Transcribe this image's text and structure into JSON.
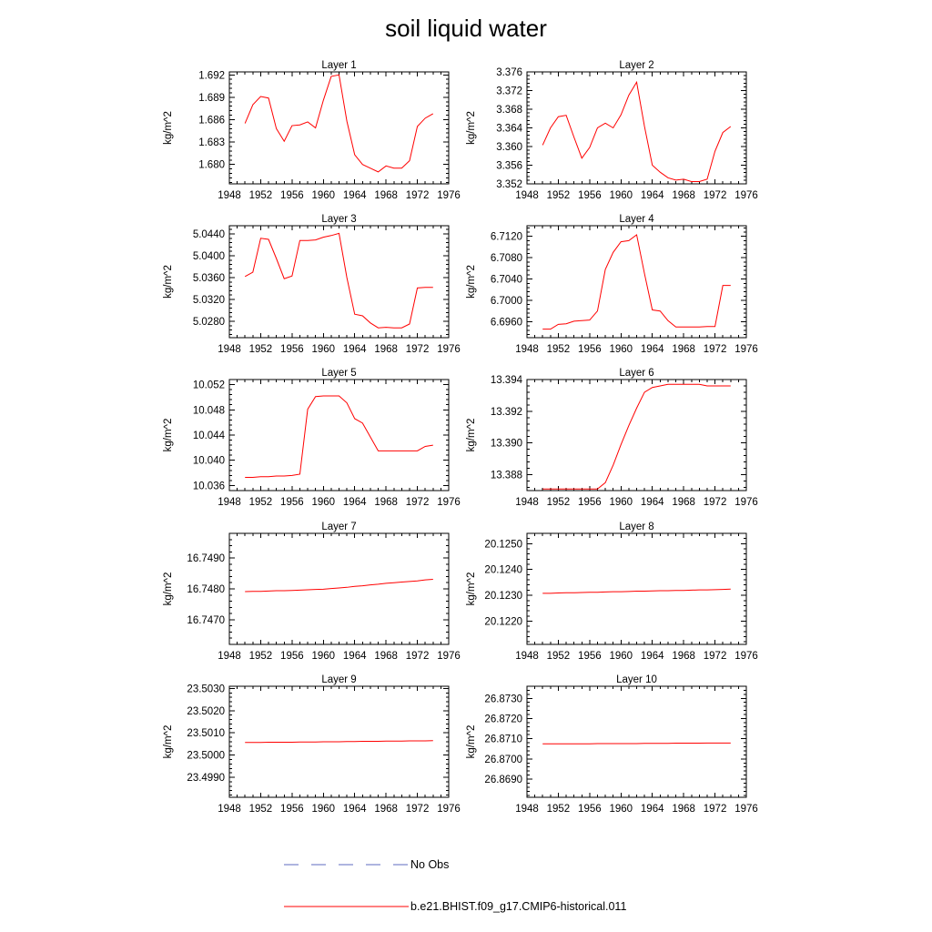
{
  "chart_data": {
    "type": "line",
    "title": "soil liquid water",
    "grid": false,
    "legend": {
      "placement": "bottom-center",
      "entries": [
        {
          "label": "No Obs",
          "color": "#5c6bc0",
          "style": "dashed"
        },
        {
          "label": "b.e21.BHIST.f09_g17.CMIP6-historical.011",
          "color": "#ff0000",
          "style": "solid"
        }
      ]
    },
    "x_axis": {
      "range": [
        1948,
        1976
      ],
      "ticks": [
        1948,
        1952,
        1956,
        1960,
        1964,
        1968,
        1972,
        1976
      ],
      "tick_labels": [
        "1948",
        "1952",
        "1956",
        "1960",
        "1964",
        "1968",
        "1972",
        "1976"
      ]
    },
    "x": [
      1950,
      1951,
      1952,
      1953,
      1954,
      1955,
      1956,
      1957,
      1958,
      1959,
      1960,
      1961,
      1962,
      1963,
      1964,
      1965,
      1966,
      1967,
      1968,
      1969,
      1970,
      1971,
      1972,
      1973,
      1974
    ],
    "series_color": "#ff0000",
    "panels": [
      {
        "title": "Layer 1",
        "ylabel": "kg/m^2",
        "ylim": [
          1.6774,
          1.6924
        ],
        "yticks": [
          1.68,
          1.683,
          1.686,
          1.689,
          1.692
        ],
        "ytick_labels": [
          "1.680",
          "1.683",
          "1.686",
          "1.689",
          "1.692"
        ],
        "values": [
          1.6855,
          1.688,
          1.6891,
          1.6889,
          1.6848,
          1.6831,
          1.6852,
          1.6853,
          1.6857,
          1.6849,
          1.6886,
          1.6918,
          1.692,
          1.6858,
          1.6813,
          1.68,
          1.6795,
          1.679,
          1.6798,
          1.6795,
          1.6795,
          1.6805,
          1.6851,
          1.6862,
          1.6868
        ]
      },
      {
        "title": "Layer 2",
        "ylabel": "kg/m^2",
        "ylim": [
          3.352,
          3.376
        ],
        "yticks": [
          3.352,
          3.356,
          3.36,
          3.364,
          3.368,
          3.372,
          3.376
        ],
        "ytick_labels": [
          "3.352",
          "3.356",
          "3.360",
          "3.364",
          "3.368",
          "3.372",
          "3.376"
        ],
        "values": [
          3.3603,
          3.364,
          3.3664,
          3.3667,
          3.362,
          3.3575,
          3.3598,
          3.364,
          3.365,
          3.364,
          3.3668,
          3.371,
          3.3738,
          3.3643,
          3.356,
          3.3545,
          3.3533,
          3.3528,
          3.353,
          3.3525,
          3.3525,
          3.353,
          3.359,
          3.363,
          3.3643
        ]
      },
      {
        "title": "Layer 3",
        "ylabel": "kg/m^2",
        "ylim": [
          5.025,
          5.0455
        ],
        "yticks": [
          5.028,
          5.032,
          5.036,
          5.04,
          5.044
        ],
        "ytick_labels": [
          "5.0280",
          "5.0320",
          "5.0360",
          "5.0400",
          "5.0440"
        ],
        "values": [
          5.0362,
          5.037,
          5.0432,
          5.043,
          5.0395,
          5.0358,
          5.0363,
          5.0428,
          5.0428,
          5.0429,
          5.0434,
          5.0437,
          5.0441,
          5.036,
          5.0293,
          5.029,
          5.0277,
          5.0268,
          5.0269,
          5.0268,
          5.0268,
          5.0275,
          5.0341,
          5.0342,
          5.0342
        ]
      },
      {
        "title": "Layer 4",
        "ylabel": "kg/m^2",
        "ylim": [
          6.693,
          6.714
        ],
        "yticks": [
          6.696,
          6.7,
          6.704,
          6.708,
          6.712
        ],
        "ytick_labels": [
          "6.6960",
          "6.7000",
          "6.7040",
          "6.7080",
          "6.7120"
        ],
        "values": [
          6.6946,
          6.6946,
          6.6955,
          6.6956,
          6.6961,
          6.6962,
          6.6963,
          6.698,
          6.7058,
          6.709,
          6.711,
          6.7112,
          6.7123,
          6.705,
          6.6982,
          6.698,
          6.6962,
          6.695,
          6.695,
          6.695,
          6.695,
          6.6951,
          6.6951,
          6.7028,
          6.7028
        ]
      },
      {
        "title": "Layer 5",
        "ylabel": "kg/m^2",
        "ylim": [
          10.0352,
          10.0528
        ],
        "yticks": [
          10.036,
          10.04,
          10.044,
          10.048,
          10.052
        ],
        "ytick_labels": [
          "10.036",
          "10.040",
          "10.044",
          "10.048",
          "10.052"
        ],
        "values": [
          10.0373,
          10.0373,
          10.0374,
          10.0374,
          10.0375,
          10.0375,
          10.0376,
          10.0378,
          10.0481,
          10.0501,
          10.0502,
          10.0502,
          10.0502,
          10.0491,
          10.0466,
          10.0459,
          10.0437,
          10.0415,
          10.0415,
          10.0415,
          10.0415,
          10.0415,
          10.0415,
          10.0422,
          10.0424
        ]
      },
      {
        "title": "Layer 6",
        "ylabel": "kg/m^2",
        "ylim": [
          13.387,
          13.394
        ],
        "yticks": [
          13.388,
          13.39,
          13.392,
          13.394
        ],
        "ytick_labels": [
          "13.388",
          "13.390",
          "13.392",
          "13.394"
        ],
        "values": [
          13.3871,
          13.3871,
          13.3871,
          13.3871,
          13.3871,
          13.3871,
          13.3871,
          13.3871,
          13.3875,
          13.3886,
          13.3899,
          13.3911,
          13.3922,
          13.3932,
          13.3935,
          13.3936,
          13.3937,
          13.3937,
          13.3937,
          13.3937,
          13.3937,
          13.3936,
          13.3936,
          13.3936,
          13.3936
        ]
      },
      {
        "title": "Layer 7",
        "ylabel": "kg/m^2",
        "ylim": [
          16.7462,
          16.7498
        ],
        "yticks": [
          16.747,
          16.748,
          16.749
        ],
        "ytick_labels": [
          "16.7470",
          "16.7480",
          "16.7490"
        ],
        "values": [
          16.74791,
          16.74792,
          16.74792,
          16.74793,
          16.74794,
          16.74794,
          16.74795,
          16.74796,
          16.74797,
          16.74798,
          16.74799,
          16.74801,
          16.74803,
          16.74805,
          16.74808,
          16.7481,
          16.74813,
          16.74815,
          16.74818,
          16.7482,
          16.74822,
          16.74824,
          16.74826,
          16.74829,
          16.74831
        ]
      },
      {
        "title": "Layer 8",
        "ylabel": "kg/m^2",
        "ylim": [
          20.1211,
          20.1254
        ],
        "yticks": [
          20.122,
          20.123,
          20.124,
          20.125
        ],
        "ytick_labels": [
          "20.1220",
          "20.1230",
          "20.1240",
          "20.1250"
        ],
        "values": [
          20.12308,
          20.12308,
          20.12309,
          20.1231,
          20.1231,
          20.12311,
          20.12312,
          20.12312,
          20.12313,
          20.12314,
          20.12314,
          20.12315,
          20.12316,
          20.12316,
          20.12317,
          20.12318,
          20.12318,
          20.12319,
          20.12319,
          20.1232,
          20.12321,
          20.12321,
          20.12322,
          20.12323,
          20.12324
        ]
      },
      {
        "title": "Layer 9",
        "ylabel": "kg/m^2",
        "ylim": [
          23.4981,
          23.5031
        ],
        "yticks": [
          23.499,
          23.5,
          23.501,
          23.502,
          23.503
        ],
        "ytick_labels": [
          "23.4990",
          "23.5000",
          "23.5010",
          "23.5020",
          "23.5030"
        ],
        "values": [
          23.50057,
          23.50057,
          23.50057,
          23.50058,
          23.50058,
          23.50058,
          23.50058,
          23.50059,
          23.50059,
          23.50059,
          23.5006,
          23.5006,
          23.5006,
          23.50061,
          23.50061,
          23.50062,
          23.50062,
          23.50062,
          23.50063,
          23.50063,
          23.50063,
          23.50064,
          23.50064,
          23.50064,
          23.50065
        ]
      },
      {
        "title": "Layer 10",
        "ylabel": "kg/m^2",
        "ylim": [
          26.8681,
          26.8736
        ],
        "yticks": [
          26.869,
          26.87,
          26.871,
          26.872,
          26.873
        ],
        "ytick_labels": [
          "26.8690",
          "26.8700",
          "26.8710",
          "26.8720",
          "26.8730"
        ],
        "values": [
          26.87075,
          26.87075,
          26.87075,
          26.87075,
          26.87075,
          26.87075,
          26.87075,
          26.87076,
          26.87076,
          26.87076,
          26.87076,
          26.87076,
          26.87076,
          26.87077,
          26.87077,
          26.87077,
          26.87077,
          26.87078,
          26.87078,
          26.87078,
          26.87078,
          26.87079,
          26.87079,
          26.87079,
          26.87079
        ]
      }
    ]
  }
}
